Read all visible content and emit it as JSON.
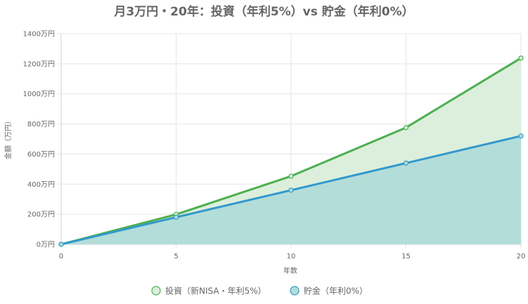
{
  "chart_data": {
    "type": "area",
    "title": "月3万円・20年：投資（年利5%）vs 貯金（年利0%）",
    "xlabel": "年数",
    "ylabel": "金額（万円）",
    "x": [
      0,
      5,
      10,
      15,
      20
    ],
    "xlim": [
      0,
      20
    ],
    "ylim": [
      0,
      1400
    ],
    "yticks": [
      0,
      200,
      400,
      600,
      800,
      1000,
      1200,
      1400
    ],
    "ytick_suffix": "万円",
    "grid": true,
    "legend_position": "bottom",
    "series": [
      {
        "name": "投資（新NISA・年利5%）",
        "values": [
          0,
          199,
          453,
          776,
          1238
        ],
        "line_color": "#4caf50",
        "fill_color": "#dcefdc"
      },
      {
        "name": "貯金（年利0%）",
        "values": [
          0,
          180,
          360,
          540,
          720
        ],
        "line_color": "#3399cc",
        "fill_color": "#b3ddd9"
      }
    ]
  }
}
